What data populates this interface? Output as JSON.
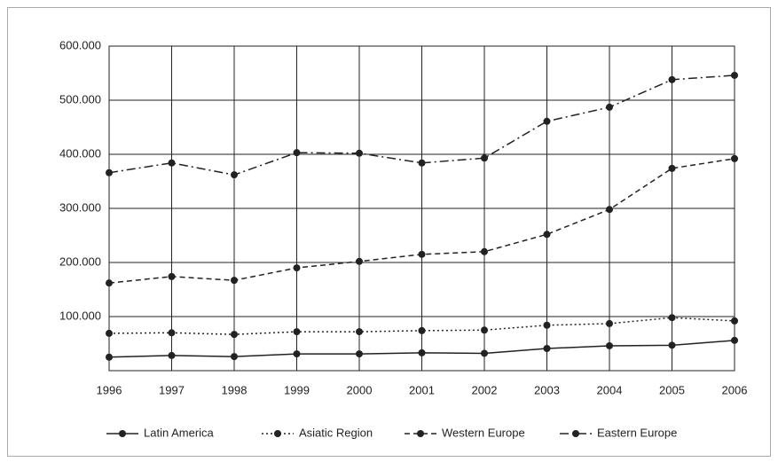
{
  "chart_data": {
    "type": "line",
    "x": [
      1996,
      1997,
      1998,
      1999,
      2000,
      2001,
      2002,
      2003,
      2004,
      2005,
      2006
    ],
    "xlim": [
      1996,
      2006
    ],
    "xticks": [
      1996,
      1997,
      1998,
      1999,
      2000,
      2001,
      2002,
      2003,
      2004,
      2005,
      2006
    ],
    "ylim": [
      0,
      600000
    ],
    "yticks": [
      {
        "value": 100000,
        "label": "100.000"
      },
      {
        "value": 200000,
        "label": "200.000"
      },
      {
        "value": 300000,
        "label": "300.000"
      },
      {
        "value": 400000,
        "label": "400.000"
      },
      {
        "value": 500000,
        "label": "500.000"
      },
      {
        "value": 600000,
        "label": "600.000"
      }
    ],
    "grid": true,
    "legend": "bottom",
    "series": [
      {
        "name": "Latin America",
        "color": "#222222",
        "dash": "solid",
        "values": [
          25000,
          28000,
          26000,
          31000,
          31000,
          33000,
          32000,
          41000,
          46000,
          47000,
          56000
        ]
      },
      {
        "name": "Asiatic Region",
        "color": "#222222",
        "dash": "dotted",
        "values": [
          69000,
          70000,
          67000,
          72000,
          72000,
          74000,
          75000,
          84000,
          87000,
          98000,
          92000
        ]
      },
      {
        "name": "Western Europe",
        "color": "#222222",
        "dash": "dashed",
        "values": [
          162000,
          174000,
          167000,
          190000,
          202000,
          215000,
          220000,
          252000,
          298000,
          374000,
          392000
        ]
      },
      {
        "name": "Eastern Europe",
        "color": "#222222",
        "dash": "dashdot",
        "values": [
          366000,
          384000,
          362000,
          403000,
          402000,
          384000,
          393000,
          461000,
          487000,
          538000,
          546000
        ]
      }
    ]
  }
}
